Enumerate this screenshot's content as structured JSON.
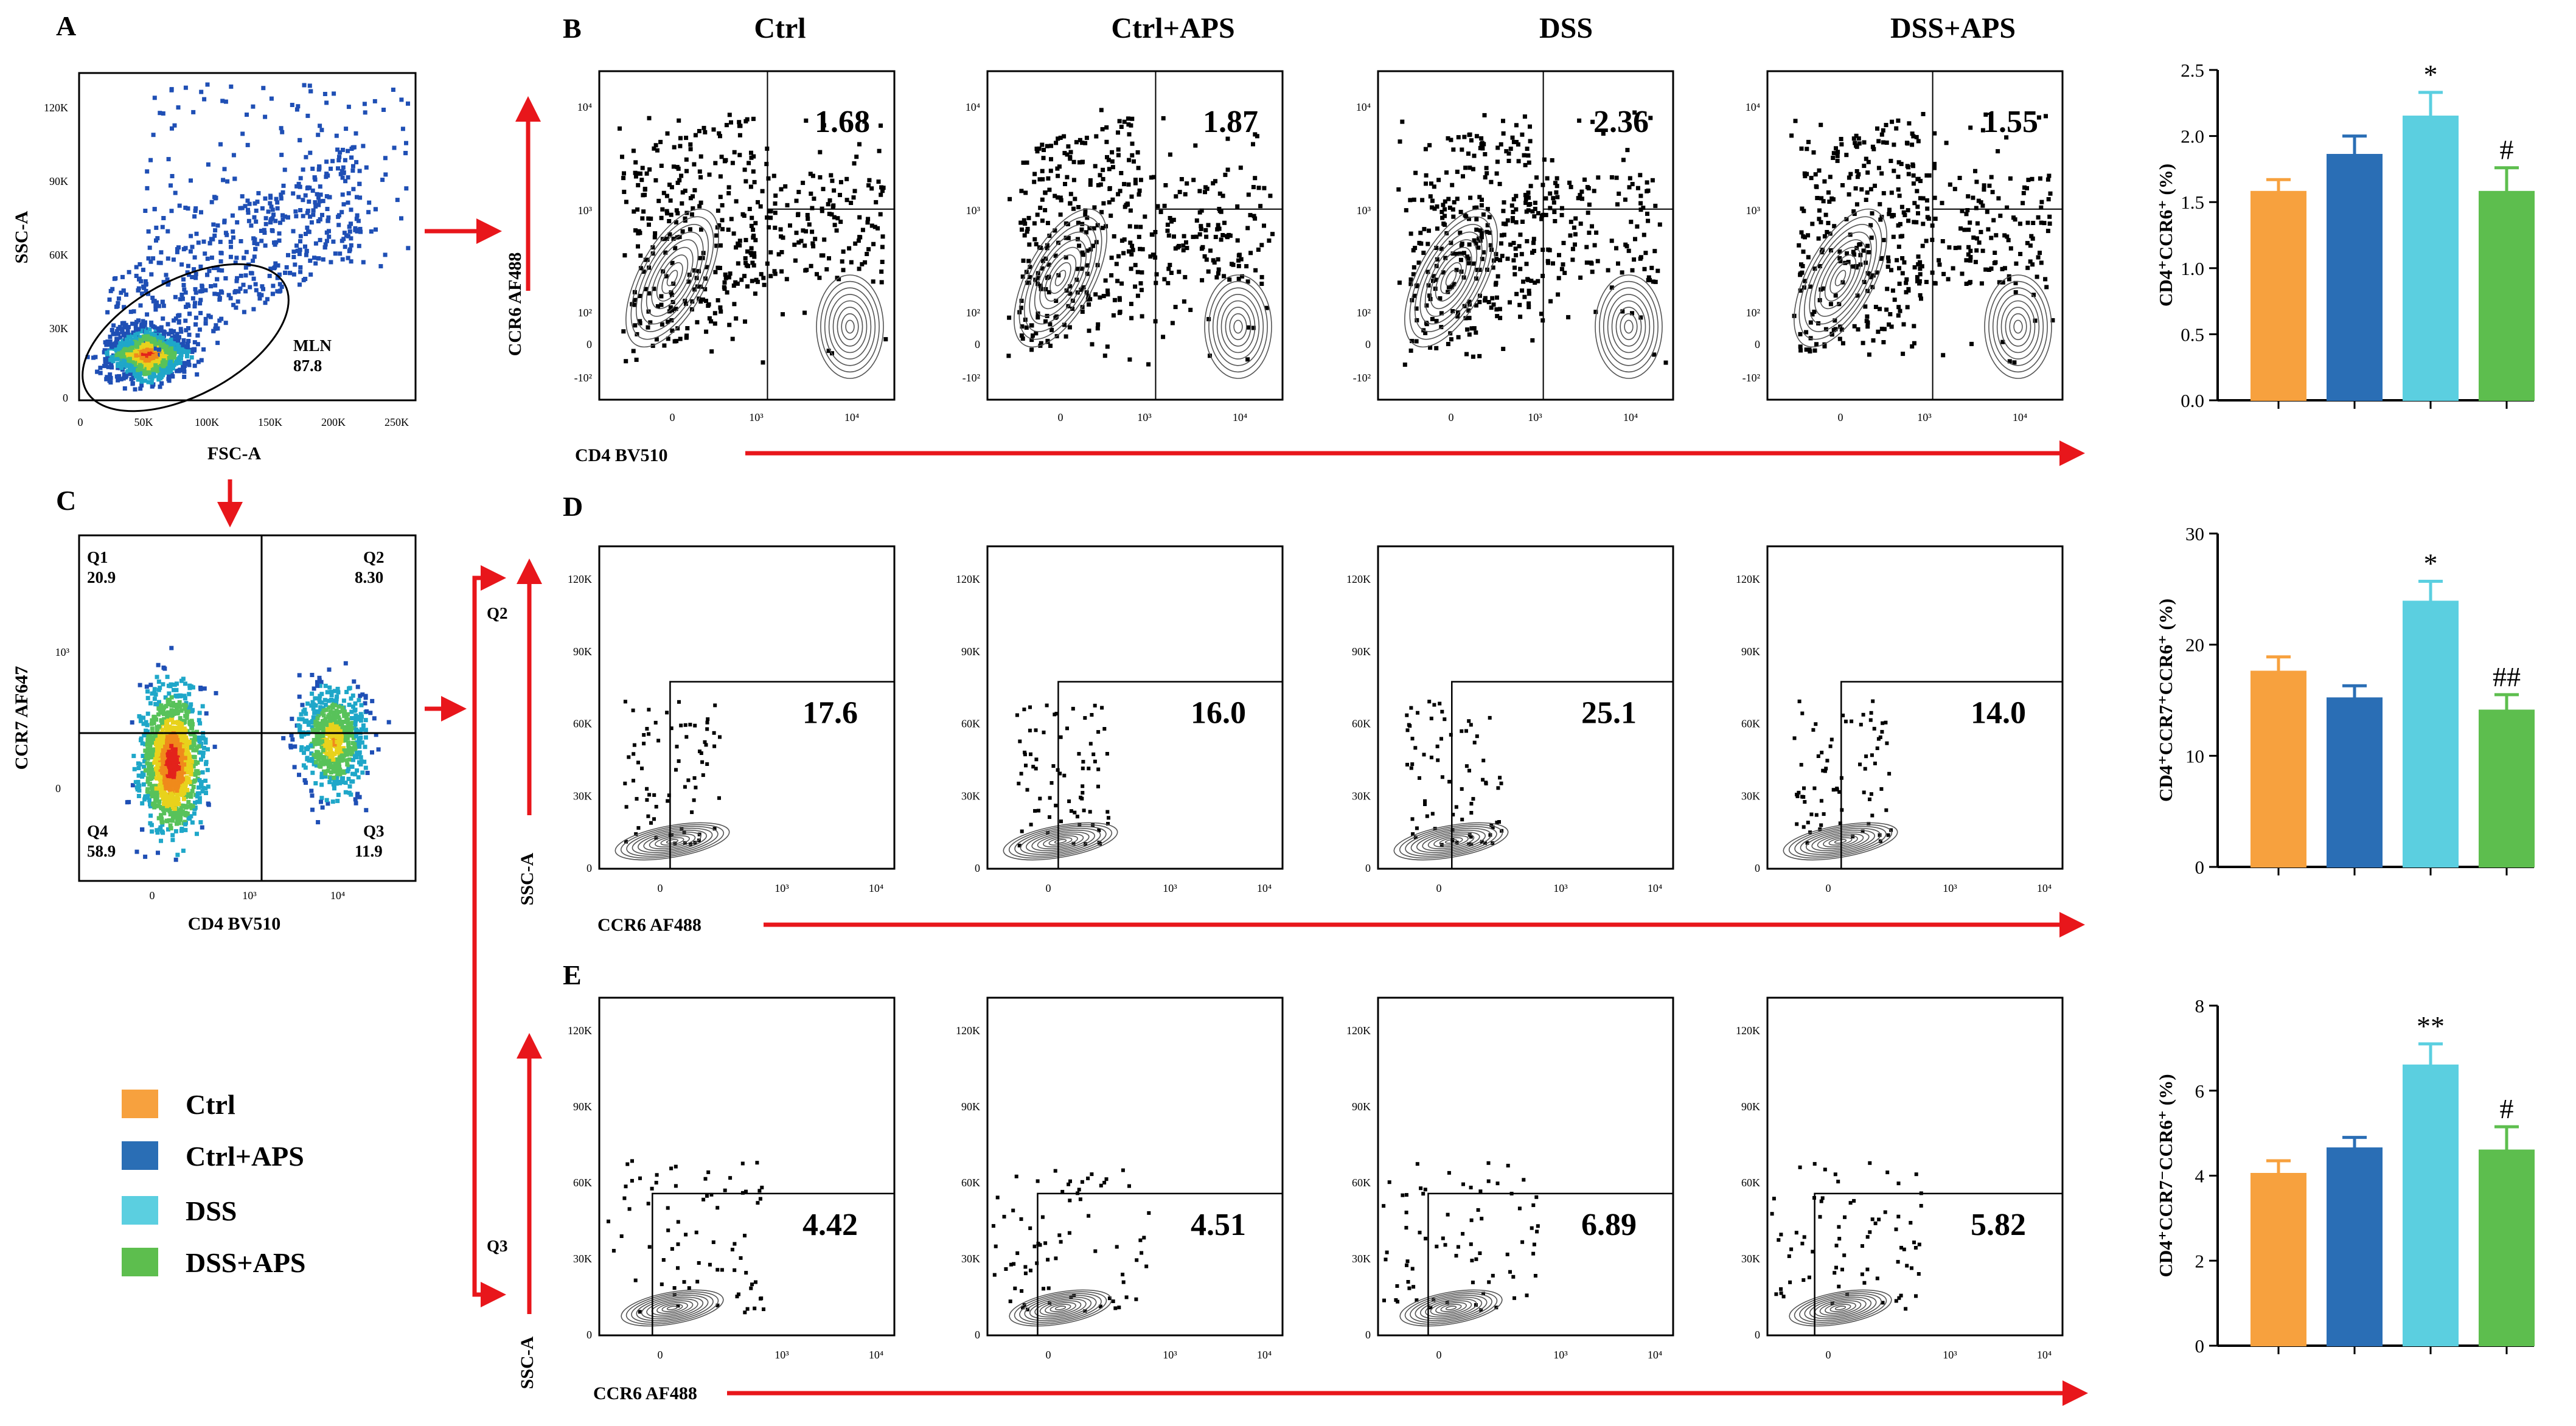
{
  "panels": {
    "A": {
      "label": "A",
      "xlabel": "FSC-A",
      "ylabel": "SSC-A",
      "xticks": [
        "0",
        "50K",
        "100K",
        "150K",
        "200K",
        "250K"
      ],
      "yticks": [
        "0",
        "30K",
        "60K",
        "90K",
        "120K"
      ],
      "gate_name": "MLN",
      "gate_value": "87.8"
    },
    "B": {
      "label": "B",
      "xlabel": "CD4 BV510",
      "ylabel": "CCR6 AF488",
      "xticks": [
        "0",
        "10³",
        "10⁴"
      ],
      "yticks": [
        "10⁴",
        "10³",
        "10²",
        "0",
        "-10²"
      ],
      "values": [
        "1.68",
        "1.87",
        "2.36",
        "1.55"
      ]
    },
    "C": {
      "label": "C",
      "xlabel": "CD4 BV510",
      "ylabel": "CCR7  AF647",
      "xticks": [
        "0",
        "10³",
        "10⁴"
      ],
      "yticks": [
        "10³",
        "0"
      ],
      "quadrants": [
        {
          "name": "Q1",
          "value": "20.9"
        },
        {
          "name": "Q2",
          "value": "8.30"
        },
        {
          "name": "Q4",
          "value": "58.9"
        },
        {
          "name": "Q3",
          "value": "11.9"
        }
      ]
    },
    "D": {
      "label": "D",
      "xlabel": "CCR6 AF488",
      "ylabel": "SSC-A",
      "gate_label": "Q2",
      "xticks": [
        "0",
        "10³",
        "10⁴"
      ],
      "yticks": [
        "120K",
        "90K",
        "60K",
        "30K",
        "0"
      ],
      "values": [
        "17.6",
        "16.0",
        "25.1",
        "14.0"
      ]
    },
    "E": {
      "label": "E",
      "xlabel": "CCR6 AF488",
      "ylabel": "SSC-A",
      "gate_label": "Q3",
      "xticks": [
        "0",
        "10³",
        "10⁴"
      ],
      "yticks": [
        "120K",
        "90K",
        "60K",
        "30K",
        "0"
      ],
      "values": [
        "4.42",
        "4.51",
        "6.89",
        "5.82"
      ]
    }
  },
  "columns": [
    "Ctrl",
    "Ctrl+APS",
    "DSS",
    "DSS+APS"
  ],
  "legend": {
    "items": [
      {
        "label": "Ctrl",
        "color": "#F7A13E"
      },
      {
        "label": "Ctrl+APS",
        "color": "#2A6EB5"
      },
      {
        "label": "DSS",
        "color": "#5BCFE0"
      },
      {
        "label": "DSS+APS",
        "color": "#5DBE4E"
      }
    ]
  },
  "chart_data": [
    {
      "type": "bar",
      "title": "",
      "xlabel": "",
      "ylabel": "CD4⁺CCR6⁺ (%)",
      "ylim": [
        0,
        2.5
      ],
      "yticks": [
        "0.0",
        "0.5",
        "1.0",
        "1.5",
        "2.0",
        "2.5"
      ],
      "categories": [
        "Ctrl",
        "Ctrl+APS",
        "DSS",
        "DSS+APS"
      ],
      "values": [
        1.58,
        1.86,
        2.15,
        1.58
      ],
      "errors": [
        0.09,
        0.14,
        0.18,
        0.18
      ],
      "significance": [
        "",
        "",
        "*",
        "#"
      ]
    },
    {
      "type": "bar",
      "title": "",
      "xlabel": "",
      "ylabel": "CD4⁺CCR7⁺CCR6⁺ (%)",
      "ylim": [
        0,
        30
      ],
      "yticks": [
        "0",
        "10",
        "20",
        "30"
      ],
      "categories": [
        "Ctrl",
        "Ctrl+APS",
        "DSS",
        "DSS+APS"
      ],
      "values": [
        17.6,
        15.2,
        23.9,
        14.1
      ],
      "errors": [
        1.3,
        1.1,
        1.8,
        1.4
      ],
      "significance": [
        "",
        "",
        "*",
        "##"
      ]
    },
    {
      "type": "bar",
      "title": "",
      "xlabel": "",
      "ylabel": "CD4⁺CCR7⁻CCR6⁺ (%)",
      "ylim": [
        0,
        8
      ],
      "yticks": [
        "0",
        "2",
        "4",
        "6",
        "8"
      ],
      "categories": [
        "Ctrl",
        "Ctrl+APS",
        "DSS",
        "DSS+APS"
      ],
      "values": [
        4.05,
        4.65,
        6.6,
        4.6
      ],
      "errors": [
        0.3,
        0.25,
        0.5,
        0.55
      ],
      "significance": [
        "",
        "",
        "**",
        "#"
      ]
    }
  ]
}
